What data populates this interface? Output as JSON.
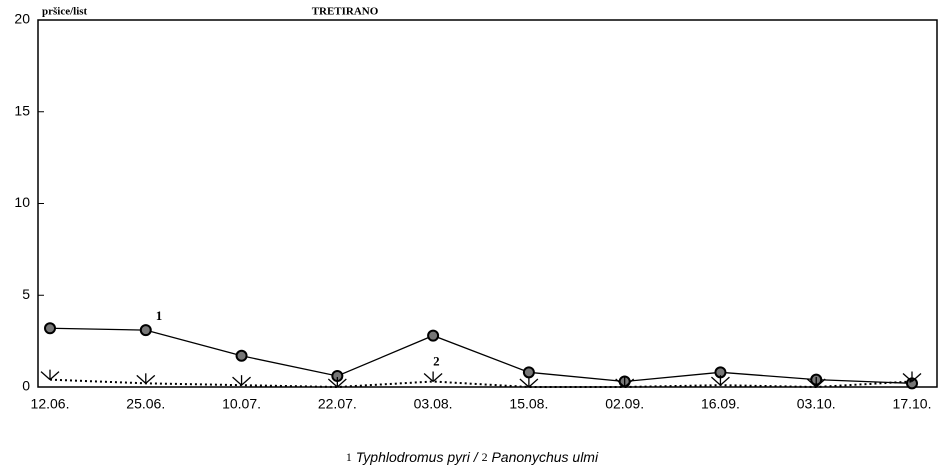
{
  "chart_data": {
    "type": "line",
    "title": "TRETIRANO",
    "y_label": "pršice/list",
    "categories": [
      "12.06.",
      "25.06.",
      "10.07.",
      "22.07.",
      "03.08.",
      "15.08.",
      "02.09.",
      "16.09.",
      "03.10.",
      "17.10."
    ],
    "series": [
      {
        "name": "Typhlodromus pyri",
        "label": "1",
        "color": "#000000",
        "style": "solid",
        "values": [
          3.2,
          3.1,
          1.7,
          0.6,
          2.8,
          0.8,
          0.3,
          0.8,
          0.4,
          0.2
        ]
      },
      {
        "name": "Panonychus ulmi",
        "label": "2",
        "color": "#000000",
        "style": "dotted",
        "values": [
          0.4,
          0.2,
          0.1,
          0,
          0.3,
          0,
          0,
          0.1,
          0,
          0.3
        ]
      }
    ],
    "legend_separator": "/",
    "ylim": [
      0,
      20
    ],
    "yticks": [
      0,
      5,
      10,
      15,
      20
    ],
    "grid": false
  }
}
